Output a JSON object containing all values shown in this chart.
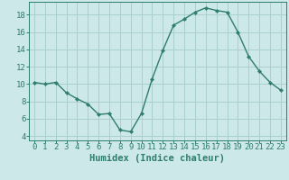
{
  "x": [
    0,
    1,
    2,
    3,
    4,
    5,
    6,
    7,
    8,
    9,
    10,
    11,
    12,
    13,
    14,
    15,
    16,
    17,
    18,
    19,
    20,
    21,
    22,
    23
  ],
  "y": [
    10.2,
    10.0,
    10.2,
    9.0,
    8.3,
    7.7,
    6.5,
    6.6,
    4.7,
    4.5,
    6.6,
    10.6,
    13.9,
    16.8,
    17.5,
    18.3,
    18.8,
    18.5,
    18.3,
    16.0,
    13.2,
    11.5,
    10.2,
    9.3
  ],
  "line_color": "#2e7d6e",
  "marker": "D",
  "marker_size": 2.2,
  "background_color": "#cde8e8",
  "grid_color": "#aacfcf",
  "xlabel": "Humidex (Indice chaleur)",
  "ylim": [
    3.5,
    19.5
  ],
  "xlim": [
    -0.5,
    23.5
  ],
  "yticks": [
    4,
    6,
    8,
    10,
    12,
    14,
    16,
    18
  ],
  "xticks": [
    0,
    1,
    2,
    3,
    4,
    5,
    6,
    7,
    8,
    9,
    10,
    11,
    12,
    13,
    14,
    15,
    16,
    17,
    18,
    19,
    20,
    21,
    22,
    23
  ],
  "tick_color": "#2e7d6e",
  "label_color": "#2e7d6e",
  "xlabel_fontsize": 7.5,
  "tick_fontsize": 6.5,
  "line_width": 1.0
}
